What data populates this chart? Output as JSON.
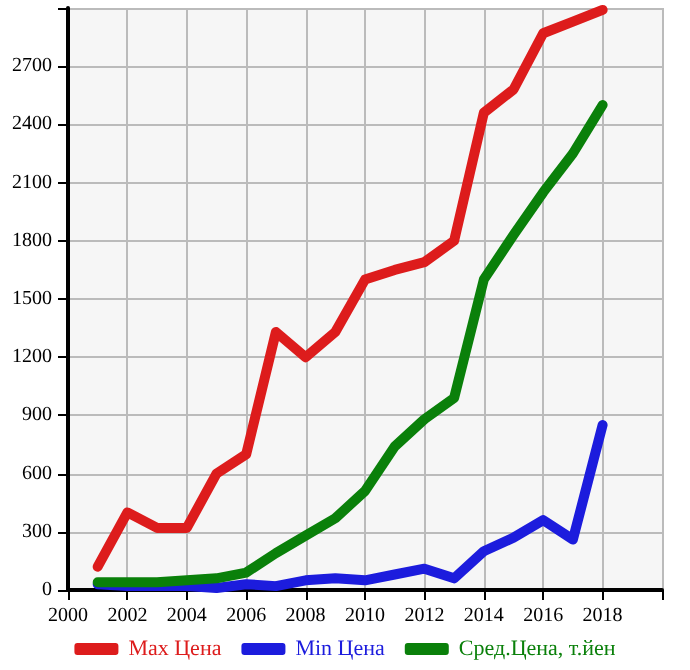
{
  "chart_data": {
    "type": "line",
    "x": [
      2001,
      2002,
      2003,
      2004,
      2005,
      2006,
      2007,
      2008,
      2009,
      2010,
      2011,
      2012,
      2013,
      2014,
      2015,
      2016,
      2017,
      2018
    ],
    "series": [
      {
        "name": "Max Цена",
        "color": "#dd1c1c",
        "values": [
          120,
          400,
          320,
          320,
          600,
          700,
          1330,
          1200,
          1330,
          1600,
          1650,
          1690,
          1800,
          2460,
          2580,
          2870,
          2930,
          2990
        ]
      },
      {
        "name": "Min Цена",
        "color": "#1c1cdd",
        "values": [
          30,
          20,
          20,
          20,
          10,
          30,
          20,
          50,
          60,
          50,
          80,
          110,
          60,
          200,
          270,
          360,
          260,
          850
        ]
      },
      {
        "name": "Сред.Цена, т.йен",
        "color": "#0a800a",
        "values": [
          40,
          40,
          40,
          50,
          60,
          90,
          190,
          280,
          370,
          510,
          740,
          880,
          990,
          1600,
          1830,
          2050,
          2250,
          2500
        ]
      }
    ],
    "xlim": [
      2000,
      2020
    ],
    "xticks": [
      2000,
      2002,
      2004,
      2006,
      2008,
      2010,
      2012,
      2014,
      2016,
      2018,
      {
        "value": 2020,
        "label": null
      }
    ],
    "ylim": [
      0,
      3000
    ],
    "yticks": [
      0,
      300,
      600,
      900,
      1200,
      1500,
      1800,
      2100,
      2400,
      2700,
      {
        "value": 3000,
        "label": null
      }
    ],
    "grid": true,
    "legend": "bottom",
    "marker": "none",
    "line_style": "solid"
  }
}
